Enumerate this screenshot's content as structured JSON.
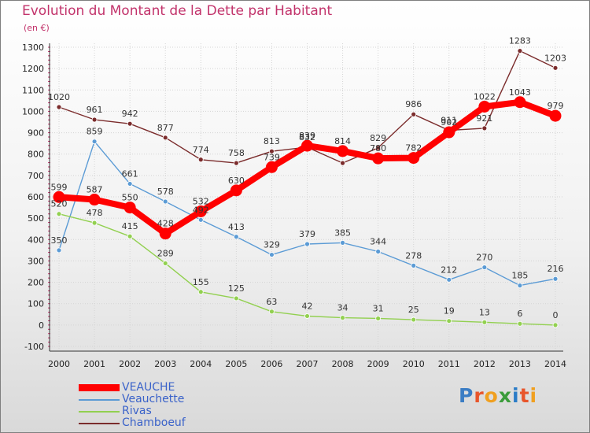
{
  "title": "Evolution du Montant de la Dette par Habitant",
  "unit_label": "(en €)",
  "logo": {
    "text": "Proxiti",
    "letter_colors": [
      "#3b7dc4",
      "#e8552b",
      "#f0a020",
      "#3b9c3b",
      "#2a7cc7",
      "#e8552b",
      "#f0a020"
    ]
  },
  "chart_data": {
    "type": "line",
    "title": "Evolution du Montant de la Dette par Habitant",
    "ylabel": "(en €)",
    "xlabel": "",
    "x": [
      2000,
      2001,
      2002,
      2003,
      2004,
      2005,
      2006,
      2007,
      2008,
      2009,
      2010,
      2011,
      2012,
      2013,
      2014
    ],
    "ylim": [
      -100,
      1300
    ],
    "yticks": [
      -100,
      0,
      100,
      200,
      300,
      400,
      500,
      600,
      700,
      800,
      900,
      1000,
      1100,
      1200,
      1300
    ],
    "grid": true,
    "legend_position": "bottom-left",
    "series": [
      {
        "name": "VEAUCHE",
        "color": "#ff0000",
        "values": [
          599,
          587,
          550,
          428,
          532,
          630,
          739,
          839,
          814,
          780,
          782,
          902,
          1022,
          1043,
          979
        ],
        "labels": [
          "599",
          "587",
          "550",
          "428",
          "532",
          "630",
          "739",
          "839",
          "814",
          "780",
          "782",
          "902",
          "1022",
          "1043",
          "979"
        ]
      },
      {
        "name": "Veauchette",
        "color": "#5b9bd5",
        "values": [
          350,
          859,
          661,
          578,
          492,
          413,
          329,
          379,
          385,
          344,
          278,
          212,
          270,
          185,
          216
        ],
        "labels": [
          "350",
          "859",
          "661",
          "578",
          "492",
          "413",
          "329",
          "379",
          "385",
          "344",
          "278",
          "212",
          "270",
          "185",
          "216"
        ]
      },
      {
        "name": "Rivas",
        "color": "#92d050",
        "values": [
          520,
          478,
          415,
          289,
          155,
          125,
          63,
          42,
          34,
          31,
          25,
          19,
          13,
          6,
          0
        ],
        "labels": [
          "520",
          "478",
          "415",
          "289",
          "155",
          "125",
          "63",
          "42",
          "34",
          "31",
          "25",
          "19",
          "13",
          "6",
          "0"
        ]
      },
      {
        "name": "Chamboeuf",
        "color": "#7b2c2c",
        "values": [
          1020,
          961,
          942,
          877,
          774,
          758,
          813,
          832,
          758,
          829,
          986,
          911,
          921,
          1283,
          1203
        ],
        "labels": [
          "1020",
          "961",
          "942",
          "877",
          "774",
          "758",
          "813",
          "832",
          "",
          "829",
          "986",
          "911",
          "921",
          "1283",
          "1203"
        ]
      }
    ]
  }
}
